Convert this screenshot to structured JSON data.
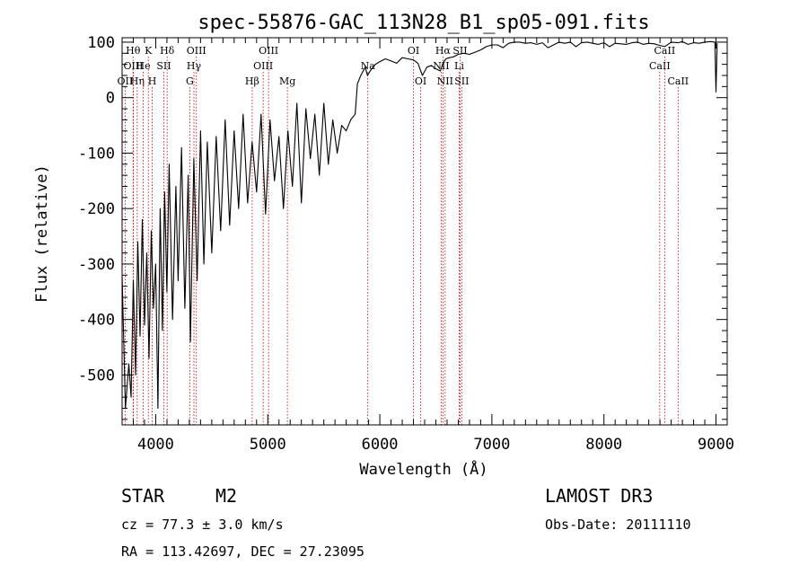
{
  "chart_data": {
    "type": "line",
    "title": "spec-55876-GAC_113N28_B1_sp05-091.fits",
    "xlabel": "Wavelength (Å)",
    "ylabel": "Flux (relative)",
    "xlim": [
      3700,
      9100
    ],
    "ylim": [
      -590,
      108
    ],
    "x_ticks": [
      4000,
      5000,
      6000,
      7000,
      8000,
      9000
    ],
    "y_ticks": [
      -500,
      -400,
      -300,
      -200,
      -100,
      0,
      100
    ],
    "series": [
      {
        "name": "flux",
        "x": [
          3700,
          3730,
          3760,
          3780,
          3800,
          3820,
          3840,
          3860,
          3880,
          3900,
          3920,
          3940,
          3960,
          3980,
          4000,
          4020,
          4040,
          4060,
          4080,
          4100,
          4120,
          4150,
          4180,
          4200,
          4230,
          4260,
          4290,
          4310,
          4340,
          4370,
          4400,
          4430,
          4460,
          4500,
          4540,
          4580,
          4620,
          4660,
          4700,
          4740,
          4780,
          4820,
          4860,
          4900,
          4940,
          4980,
          5020,
          5060,
          5100,
          5140,
          5180,
          5220,
          5260,
          5300,
          5340,
          5380,
          5420,
          5460,
          5500,
          5540,
          5580,
          5620,
          5660,
          5700,
          5740,
          5780,
          5800,
          5830,
          5870,
          5890,
          5920,
          5960,
          6000,
          6050,
          6100,
          6150,
          6200,
          6250,
          6300,
          6340,
          6380,
          6420,
          6460,
          6500,
          6540,
          6563,
          6590,
          6620,
          6650,
          6700,
          6750,
          6800,
          6850,
          6900,
          6950,
          7000,
          7050,
          7100,
          7150,
          7200,
          7250,
          7300,
          7350,
          7400,
          7450,
          7500,
          7550,
          7600,
          7650,
          7700,
          7750,
          7800,
          7850,
          7900,
          7950,
          8000,
          8050,
          8100,
          8150,
          8200,
          8250,
          8300,
          8350,
          8400,
          8450,
          8500,
          8542,
          8600,
          8662,
          8700,
          8750,
          8800,
          8850,
          8900,
          8950,
          8990,
          9000,
          9010
        ],
        "y": [
          -320,
          -560,
          -480,
          -540,
          -330,
          -500,
          -260,
          -430,
          -220,
          -410,
          -280,
          -470,
          -240,
          -380,
          -300,
          -560,
          -200,
          -420,
          -170,
          -350,
          -120,
          -400,
          -160,
          -330,
          -90,
          -380,
          -140,
          -440,
          -110,
          -330,
          -60,
          -300,
          -80,
          -280,
          -70,
          -240,
          -40,
          -230,
          -60,
          -200,
          -30,
          -190,
          -80,
          -170,
          -30,
          -210,
          -40,
          -150,
          -70,
          -200,
          -60,
          -160,
          -10,
          -190,
          -20,
          -110,
          -30,
          -140,
          -10,
          -120,
          -40,
          -100,
          -50,
          -60,
          -40,
          -30,
          25,
          40,
          55,
          40,
          50,
          60,
          65,
          70,
          66,
          62,
          72,
          70,
          68,
          62,
          40,
          55,
          58,
          52,
          48,
          62,
          70,
          72,
          73,
          78,
          80,
          78,
          82,
          86,
          92,
          95,
          95,
          90,
          98,
          100,
          100,
          98,
          99,
          96,
          99,
          90,
          95,
          100,
          98,
          100,
          92,
          99,
          100,
          98,
          96,
          99,
          92,
          98,
          97,
          96,
          99,
          100,
          96,
          98,
          97,
          94,
          92,
          100,
          99,
          101,
          96,
          99,
          98,
          100,
          101,
          100,
          10,
          98
        ]
      }
    ],
    "spectral_lines": [
      {
        "label": "OII",
        "wavelength": 3727,
        "row": 3
      },
      {
        "label": "Hθ",
        "wavelength": 3798,
        "row": 1
      },
      {
        "label": "OIII",
        "wavelength": 3800,
        "row": 2
      },
      {
        "label": "Hη",
        "wavelength": 3835,
        "row": 3
      },
      {
        "label": "He",
        "wavelength": 3889,
        "row": 2
      },
      {
        "label": "K",
        "wavelength": 3934,
        "row": 1
      },
      {
        "label": "H",
        "wavelength": 3969,
        "row": 3
      },
      {
        "label": "SII",
        "wavelength": 4072,
        "row": 2
      },
      {
        "label": "Hδ",
        "wavelength": 4102,
        "row": 1
      },
      {
        "label": "G",
        "wavelength": 4304,
        "row": 3
      },
      {
        "label": "Hγ",
        "wavelength": 4341,
        "row": 2
      },
      {
        "label": "OIII",
        "wavelength": 4363,
        "row": 1
      },
      {
        "label": "Hβ",
        "wavelength": 4861,
        "row": 3
      },
      {
        "label": "OIII",
        "wavelength": 4959,
        "row": 2
      },
      {
        "label": "OIII",
        "wavelength": 5007,
        "row": 1
      },
      {
        "label": "Mg",
        "wavelength": 5175,
        "row": 3
      },
      {
        "label": "Na",
        "wavelength": 5893,
        "row": 2
      },
      {
        "label": "OI",
        "wavelength": 6300,
        "row": 1
      },
      {
        "label": "OI",
        "wavelength": 6364,
        "row": 3
      },
      {
        "label": "NII",
        "wavelength": 6548,
        "row": 2
      },
      {
        "label": "Hα",
        "wavelength": 6563,
        "row": 1
      },
      {
        "label": "NII",
        "wavelength": 6583,
        "row": 3
      },
      {
        "label": "Li",
        "wavelength": 6708,
        "row": 2
      },
      {
        "label": "SII",
        "wavelength": 6716,
        "row": 1
      },
      {
        "label": "SII",
        "wavelength": 6731,
        "row": 3
      },
      {
        "label": "CaII",
        "wavelength": 8498,
        "row": 2
      },
      {
        "label": "CaII",
        "wavelength": 8542,
        "row": 1
      },
      {
        "label": "CaII",
        "wavelength": 8662,
        "row": 3
      }
    ],
    "line_color": "#c00000",
    "spectrum_color": "#000000"
  },
  "info": {
    "object_class": "STAR",
    "subclass": "M2",
    "survey": "LAMOST DR3",
    "cz": "cz = 77.3 ± 3.0 km/s",
    "obs_date": "Obs-Date: 20111110",
    "radec": "RA = 113.42697, DEC =  27.23095"
  }
}
